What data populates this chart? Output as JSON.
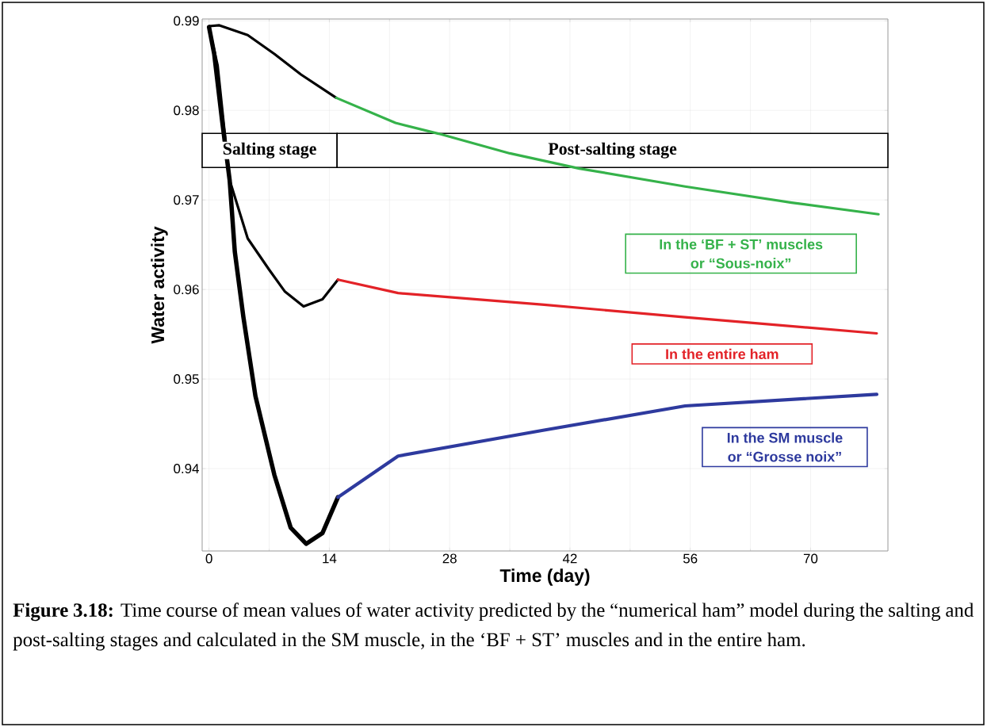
{
  "chart_data": {
    "type": "line",
    "xlabel": "Time (day)",
    "ylabel": "Water activity",
    "xlim": [
      -0.8,
      79
    ],
    "xticks": [
      0,
      14,
      28,
      42,
      56,
      70
    ],
    "ylim": [
      0.9308,
      0.9902
    ],
    "yticks": [
      0.94,
      0.95,
      0.96,
      0.97,
      0.98,
      0.99
    ],
    "grid": true,
    "legend": false,
    "bands": [
      {
        "axis": "x",
        "from": -0.8,
        "to": 14.9,
        "label": "Salting stage",
        "color": "#ffffff"
      },
      {
        "axis": "x",
        "from": 14.9,
        "to": 79,
        "label": "Post-salting stage",
        "color": "#ffffff"
      }
    ],
    "series": [
      {
        "color": "#000000",
        "x": [
          0,
          1.2,
          4.5,
          7.6,
          10.7,
          14.8
        ],
        "values": [
          0.9894,
          0.9895,
          0.9884,
          0.9863,
          0.984,
          0.9814
        ]
      },
      {
        "name": "In the ‘BF + ST’ muscles or “Sous-noix”",
        "color": "#35b24a",
        "x": [
          14.8,
          21.7,
          26.7,
          35,
          43.1,
          55.4,
          67.8,
          77.9
        ],
        "values": [
          0.9814,
          0.9786,
          0.9774,
          0.9752,
          0.9735,
          0.9715,
          0.9697,
          0.9684
        ]
      },
      {
        "color": "#000000",
        "x": [
          0,
          1,
          2.4,
          4.5,
          7,
          8.8,
          11,
          13.2,
          15
        ],
        "values": [
          0.9893,
          0.985,
          0.9722,
          0.9657,
          0.9622,
          0.9598,
          0.9581,
          0.9589,
          0.9611
        ]
      },
      {
        "name": "In the entire ham",
        "color": "#e32227",
        "x": [
          15,
          22,
          39,
          55.4,
          77.7
        ],
        "values": [
          0.9611,
          0.9596,
          0.9583,
          0.9569,
          0.9551
        ]
      },
      {
        "color": "#000000",
        "x": [
          0,
          0.6,
          1.5,
          2.4,
          3,
          4,
          5.4,
          7.6,
          9.5,
          11.3,
          13.2,
          15
        ],
        "values": [
          0.9893,
          0.9863,
          0.979,
          0.9722,
          0.9642,
          0.9569,
          0.9481,
          0.9393,
          0.9334,
          0.9316,
          0.9328,
          0.9368
        ]
      },
      {
        "name": "In the SM muscle or “Grosse noix”",
        "color": "#2e3a9e",
        "x": [
          15,
          22,
          39,
          55.4,
          77.7
        ],
        "values": [
          0.9368,
          0.9414,
          0.9443,
          0.947,
          0.9483
        ]
      }
    ],
    "annotations": [
      "**Figure 3.18:** Time course of mean values of water activity predicted by the “numerical ham” model during the salting and post-salting stages and calculated in the SM muscle, in the ‘BF + ST’ muscles and in the entire ham."
    ]
  }
}
